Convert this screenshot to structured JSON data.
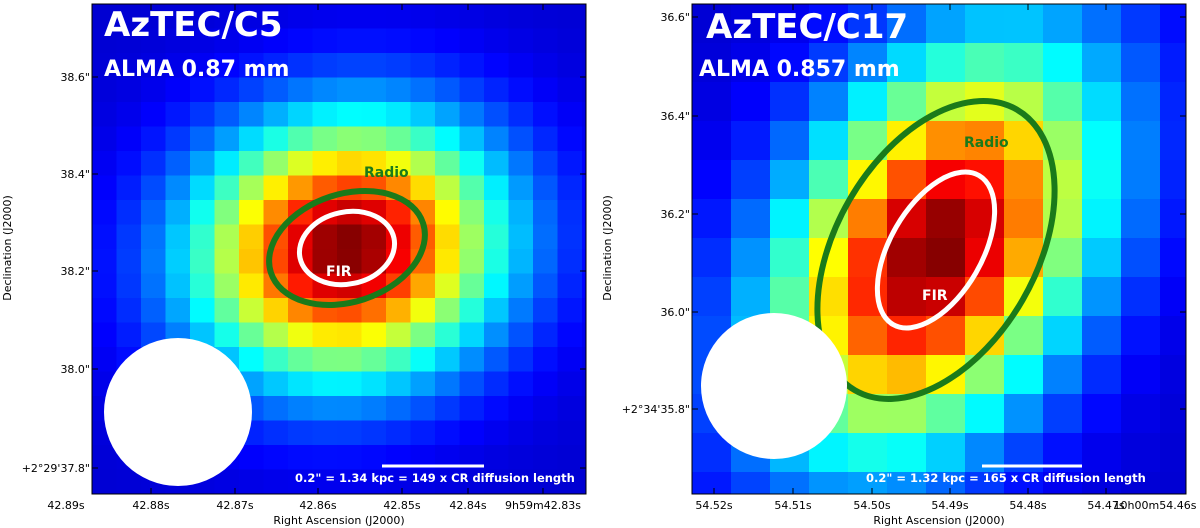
{
  "panels": [
    {
      "title": "AzTEC/C5",
      "subtitle": "ALMA 0.87 mm",
      "radio_label": "Radio",
      "fir_label": "FIR",
      "scalebar_text": "0.2\" = 1.34 kpc = 149 x CR diffusion length",
      "xlabel": "Right Ascension (J2000)",
      "ylabel": "Declination (J2000)",
      "x_ticks": [
        "42.89s",
        "42.88s",
        "42.87s",
        "42.86s",
        "42.85s",
        "42.84s",
        "9h59m42.83s"
      ],
      "y_ticks": [
        "38.6\"",
        "38.4\"",
        "38.2\"",
        "38.0\"",
        "+2°29'37.8\""
      ],
      "colors": {
        "radio": "#1a7a1a",
        "fir": "#ffffff"
      }
    },
    {
      "title": "AzTEC/C17",
      "subtitle": "ALMA 0.857 mm",
      "radio_label": "Radio",
      "fir_label": "FIR",
      "scalebar_text": "0.2\" = 1.32 kpc = 165 x CR diffusion length",
      "xlabel": "Right Ascension (J2000)",
      "ylabel": "Declination (J2000)",
      "x_ticks": [
        "54.52s",
        "54.51s",
        "54.50s",
        "54.49s",
        "54.48s",
        "54.47s",
        "10h00m54.46s"
      ],
      "y_ticks": [
        "36.6\"",
        "36.4\"",
        "36.2\"",
        "36.0\"",
        "+2°34'35.8\""
      ],
      "colors": {
        "radio": "#1a7a1a",
        "fir": "#ffffff"
      }
    }
  ]
}
